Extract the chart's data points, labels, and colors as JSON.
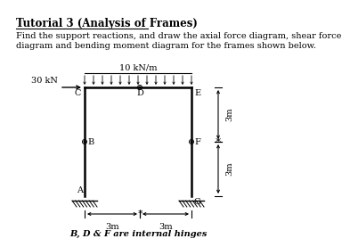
{
  "title": "Tutorial 3 (Analysis of Frames)",
  "description_line1": "Find the support reactions, and draw the axial force diagram, shear force",
  "description_line2": "diagram and bending moment diagram for the frames shown below.",
  "bg_color": "#ffffff",
  "load_label": "10 kN/m",
  "horizontal_load": "30 kN",
  "bottom_note": "B, D & F are internal hinges",
  "dim_horiz": [
    "3m",
    "3m"
  ],
  "dim_vert": [
    "3m",
    "3m"
  ],
  "node_labels": [
    "A",
    "B",
    "C",
    "D",
    "E",
    "F",
    "G"
  ],
  "font_size_title": 8.5,
  "font_size_body": 7.0,
  "font_size_diagram": 7.0
}
